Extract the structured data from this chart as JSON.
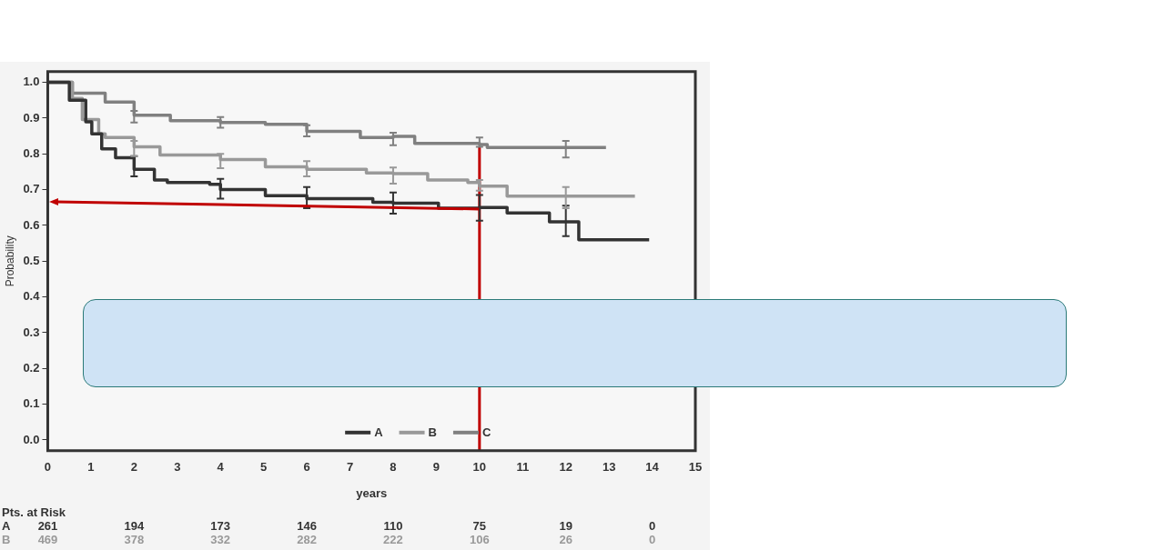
{
  "chart_data": {
    "type": "step",
    "xlabel": "years",
    "ylabel": "Probability",
    "xlim": [
      0,
      15
    ],
    "ylim": [
      -0.03,
      1.03
    ],
    "xticks": [
      0,
      1,
      2,
      3,
      4,
      5,
      6,
      7,
      8,
      9,
      10,
      11,
      12,
      13,
      14,
      15
    ],
    "yticks": [
      {
        "value": 0,
        "label": "0.0"
      },
      {
        "value": 0.1,
        "label": "0.1"
      },
      {
        "value": 0.2,
        "label": "0.2"
      },
      {
        "value": 0.3,
        "label": "0.3"
      },
      {
        "value": 0.4,
        "label": "0.4"
      },
      {
        "value": 0.5,
        "label": "0.5"
      },
      {
        "value": 0.6,
        "label": "0.6"
      },
      {
        "value": 0.7,
        "label": "0.7"
      },
      {
        "value": 0.8,
        "label": "0.8"
      },
      {
        "value": 0.9,
        "label": "0.9"
      },
      {
        "value": 1,
        "label": "1.0"
      }
    ],
    "grid": false,
    "legend": "bottom",
    "marker": "none",
    "series": [
      {
        "name": "A",
        "color": "#333333",
        "x": [
          0,
          0.5,
          0.88,
          1.02,
          1.25,
          1.57,
          2,
          2.47,
          2.77,
          3.75,
          4,
          5.04,
          6,
          7.53,
          8,
          9.05,
          10,
          10.64,
          11.62,
          12,
          12.3,
          13.93
        ],
        "values": [
          1,
          0.95,
          0.89,
          0.856,
          0.814,
          0.789,
          0.757,
          0.727,
          0.72,
          0.715,
          0.7,
          0.683,
          0.675,
          0.665,
          0.662,
          0.648,
          0.65,
          0.635,
          0.61,
          0.61,
          0.56,
          0.56
        ],
        "errors": [
          null,
          null,
          null,
          null,
          null,
          null,
          [
            0.737,
            0.794
          ],
          null,
          null,
          null,
          [
            0.675,
            0.73
          ],
          null,
          [
            0.648,
            0.707
          ],
          null,
          [
            0.633,
            0.692
          ],
          null,
          [
            0.613,
            0.685
          ],
          null,
          null,
          [
            0.57,
            0.655
          ],
          null,
          null
        ]
      },
      {
        "name": "B",
        "color": "#999999",
        "x": [
          0,
          0.57,
          0.8,
          1.18,
          1.33,
          2,
          2.6,
          4,
          5.04,
          6,
          7.38,
          8,
          8.8,
          9.73,
          10,
          10.64,
          12,
          13.6
        ],
        "values": [
          1,
          0.955,
          0.896,
          0.856,
          0.846,
          0.82,
          0.797,
          0.784,
          0.764,
          0.757,
          0.747,
          0.745,
          0.727,
          0.72,
          0.71,
          0.682,
          0.682,
          0.682
        ],
        "errors": [
          null,
          null,
          null,
          null,
          null,
          [
            0.794,
            0.836
          ],
          null,
          [
            0.76,
            0.8
          ],
          null,
          [
            0.737,
            0.78
          ],
          null,
          [
            0.717,
            0.762
          ],
          null,
          null,
          [
            0.697,
            0.727
          ],
          null,
          [
            0.648,
            0.707
          ],
          null
        ]
      },
      {
        "name": "C",
        "color": "#808080",
        "x": [
          0,
          0.57,
          1.33,
          2,
          2.84,
          4,
          5.04,
          6,
          7.24,
          8,
          8.5,
          10,
          10.18,
          12,
          12.93
        ],
        "values": [
          1,
          0.97,
          0.945,
          0.908,
          0.893,
          0.888,
          0.883,
          0.863,
          0.846,
          0.849,
          0.829,
          0.826,
          0.818,
          0.818,
          0.818
        ],
        "errors": [
          null,
          null,
          null,
          [
            0.888,
            0.92
          ],
          null,
          [
            0.873,
            0.903
          ],
          null,
          [
            0.849,
            0.88
          ],
          null,
          [
            0.824,
            0.859
          ],
          null,
          [
            0.82,
            0.846
          ],
          null,
          [
            0.79,
            0.836
          ],
          null
        ]
      },
      {
        "type": "line",
        "color": "#c00000",
        "x": [
          10,
          10
        ],
        "values": [
          -0.03,
          0.82
        ]
      }
    ],
    "annotations": [
      "Pts. at Risk",
      "A 261 194 173 146 110 75 19 0",
      "B 469 378 332 282 222 106 26 0"
    ]
  }
}
